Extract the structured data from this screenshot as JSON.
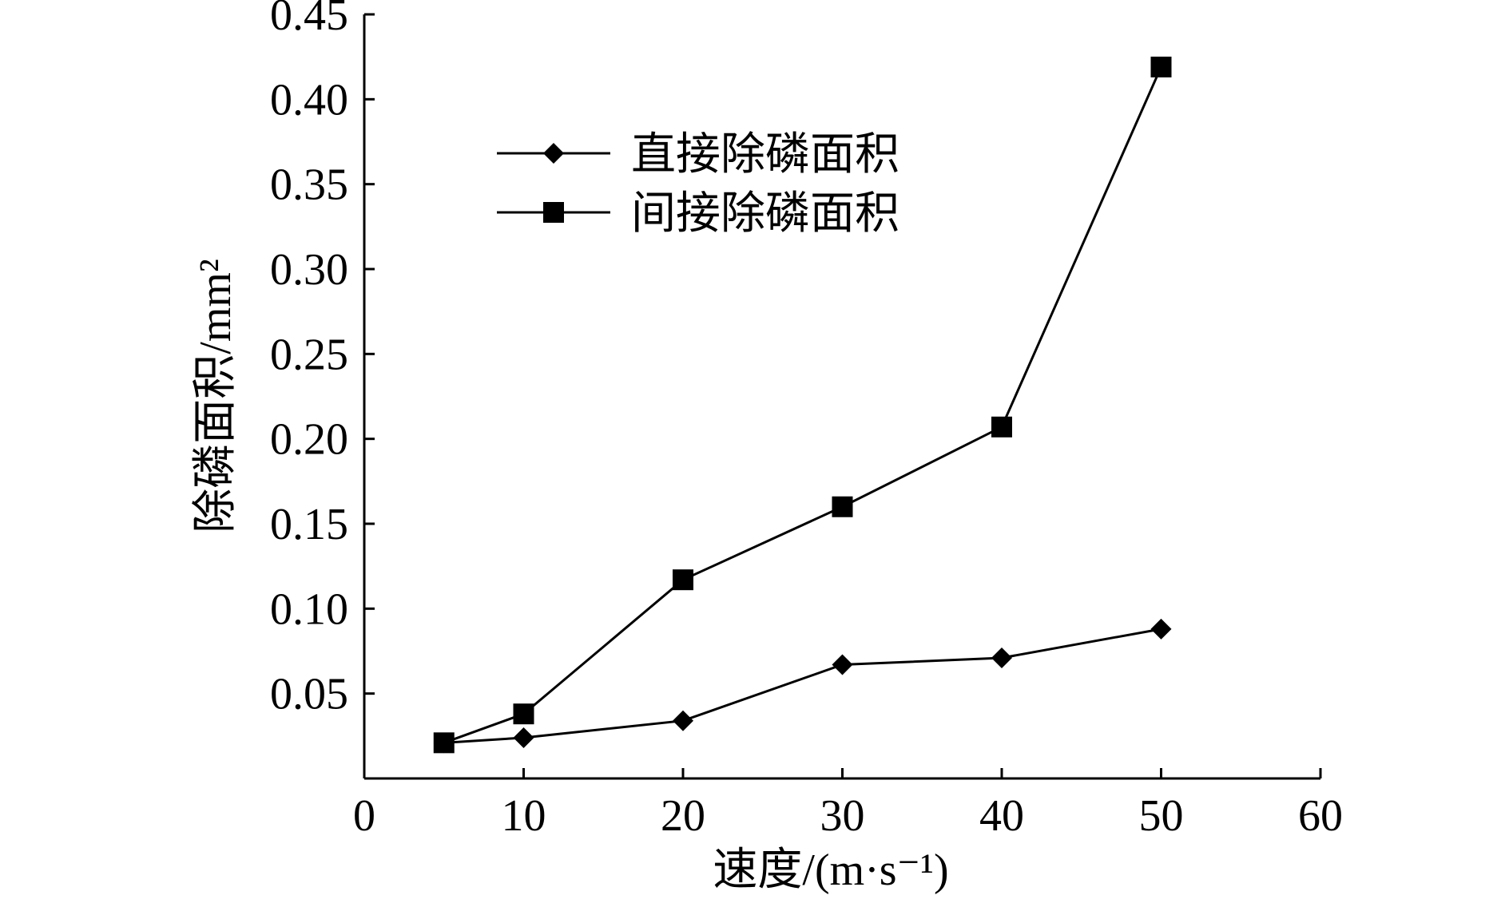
{
  "chart_data": {
    "type": "line",
    "xlabel": "速度/(m·s⁻¹)",
    "ylabel": "除磷面积/mm²",
    "xlim": [
      0,
      60
    ],
    "ylim": [
      0,
      0.45
    ],
    "x_ticks": [
      "0",
      "10",
      "20",
      "30",
      "40",
      "50",
      "60"
    ],
    "y_ticks": [
      "0.05",
      "0.10",
      "0.15",
      "0.20",
      "0.25",
      "0.30",
      "0.35",
      "0.40",
      "0.45"
    ],
    "grid": false,
    "legend_position": "top-left",
    "x": [
      5,
      10,
      20,
      30,
      40,
      50
    ],
    "series": [
      {
        "name": "直接除磷面积",
        "marker": "diamond",
        "color": "#000000",
        "values": [
          0.021,
          0.024,
          0.034,
          0.067,
          0.071,
          0.088
        ]
      },
      {
        "name": "间接除磷面积",
        "marker": "square",
        "color": "#000000",
        "values": [
          0.021,
          0.038,
          0.117,
          0.16,
          0.207,
          0.419
        ]
      }
    ]
  }
}
